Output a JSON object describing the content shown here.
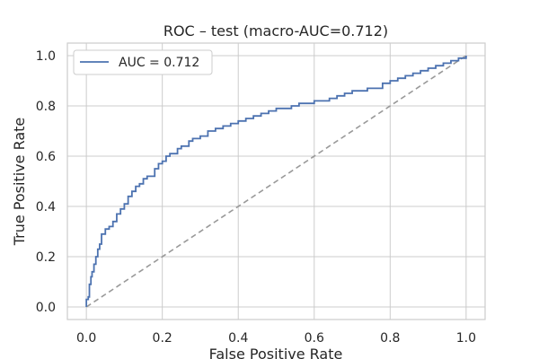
{
  "chart_data": {
    "type": "line",
    "title": "ROC – test  (macro-AUC=0.712)",
    "xlabel": "False Positive Rate",
    "ylabel": "True Positive Rate",
    "xlim": [
      -0.05,
      1.05
    ],
    "ylim": [
      -0.05,
      1.05
    ],
    "xticks": [
      0.0,
      0.2,
      0.4,
      0.6,
      0.8,
      1.0
    ],
    "xtick_labels": [
      "0.0",
      "0.2",
      "0.4",
      "0.6",
      "0.8",
      "1.0"
    ],
    "yticks": [
      0.0,
      0.2,
      0.4,
      0.6,
      0.8,
      1.0
    ],
    "ytick_labels": [
      "0.0",
      "0.2",
      "0.4",
      "0.6",
      "0.8",
      "1.0"
    ],
    "grid": true,
    "legend_position": "top-left",
    "series": [
      {
        "name": "AUC = 0.712",
        "color": "#4c72b0",
        "style": "step",
        "x": [
          0.0,
          0.0,
          0.005,
          0.008,
          0.012,
          0.015,
          0.02,
          0.025,
          0.03,
          0.035,
          0.04,
          0.05,
          0.06,
          0.07,
          0.08,
          0.09,
          0.1,
          0.11,
          0.12,
          0.13,
          0.14,
          0.15,
          0.16,
          0.18,
          0.19,
          0.2,
          0.21,
          0.22,
          0.24,
          0.25,
          0.27,
          0.28,
          0.3,
          0.32,
          0.34,
          0.36,
          0.38,
          0.4,
          0.42,
          0.44,
          0.46,
          0.48,
          0.5,
          0.52,
          0.54,
          0.56,
          0.58,
          0.6,
          0.62,
          0.64,
          0.66,
          0.68,
          0.7,
          0.72,
          0.74,
          0.76,
          0.78,
          0.8,
          0.82,
          0.84,
          0.86,
          0.88,
          0.9,
          0.92,
          0.94,
          0.96,
          0.98,
          1.0
        ],
        "y": [
          0.0,
          0.03,
          0.04,
          0.09,
          0.12,
          0.14,
          0.17,
          0.2,
          0.23,
          0.25,
          0.29,
          0.31,
          0.32,
          0.34,
          0.37,
          0.39,
          0.41,
          0.44,
          0.46,
          0.48,
          0.49,
          0.51,
          0.52,
          0.55,
          0.57,
          0.58,
          0.6,
          0.61,
          0.63,
          0.64,
          0.66,
          0.67,
          0.68,
          0.7,
          0.71,
          0.72,
          0.73,
          0.74,
          0.75,
          0.76,
          0.77,
          0.78,
          0.79,
          0.79,
          0.8,
          0.81,
          0.81,
          0.82,
          0.82,
          0.83,
          0.84,
          0.85,
          0.86,
          0.86,
          0.87,
          0.87,
          0.89,
          0.9,
          0.91,
          0.92,
          0.93,
          0.94,
          0.95,
          0.96,
          0.97,
          0.98,
          0.99,
          1.0
        ]
      },
      {
        "name": "",
        "color": "#999999",
        "style": "dashed",
        "x": [
          0.0,
          1.0
        ],
        "y": [
          0.0,
          1.0
        ]
      }
    ]
  }
}
